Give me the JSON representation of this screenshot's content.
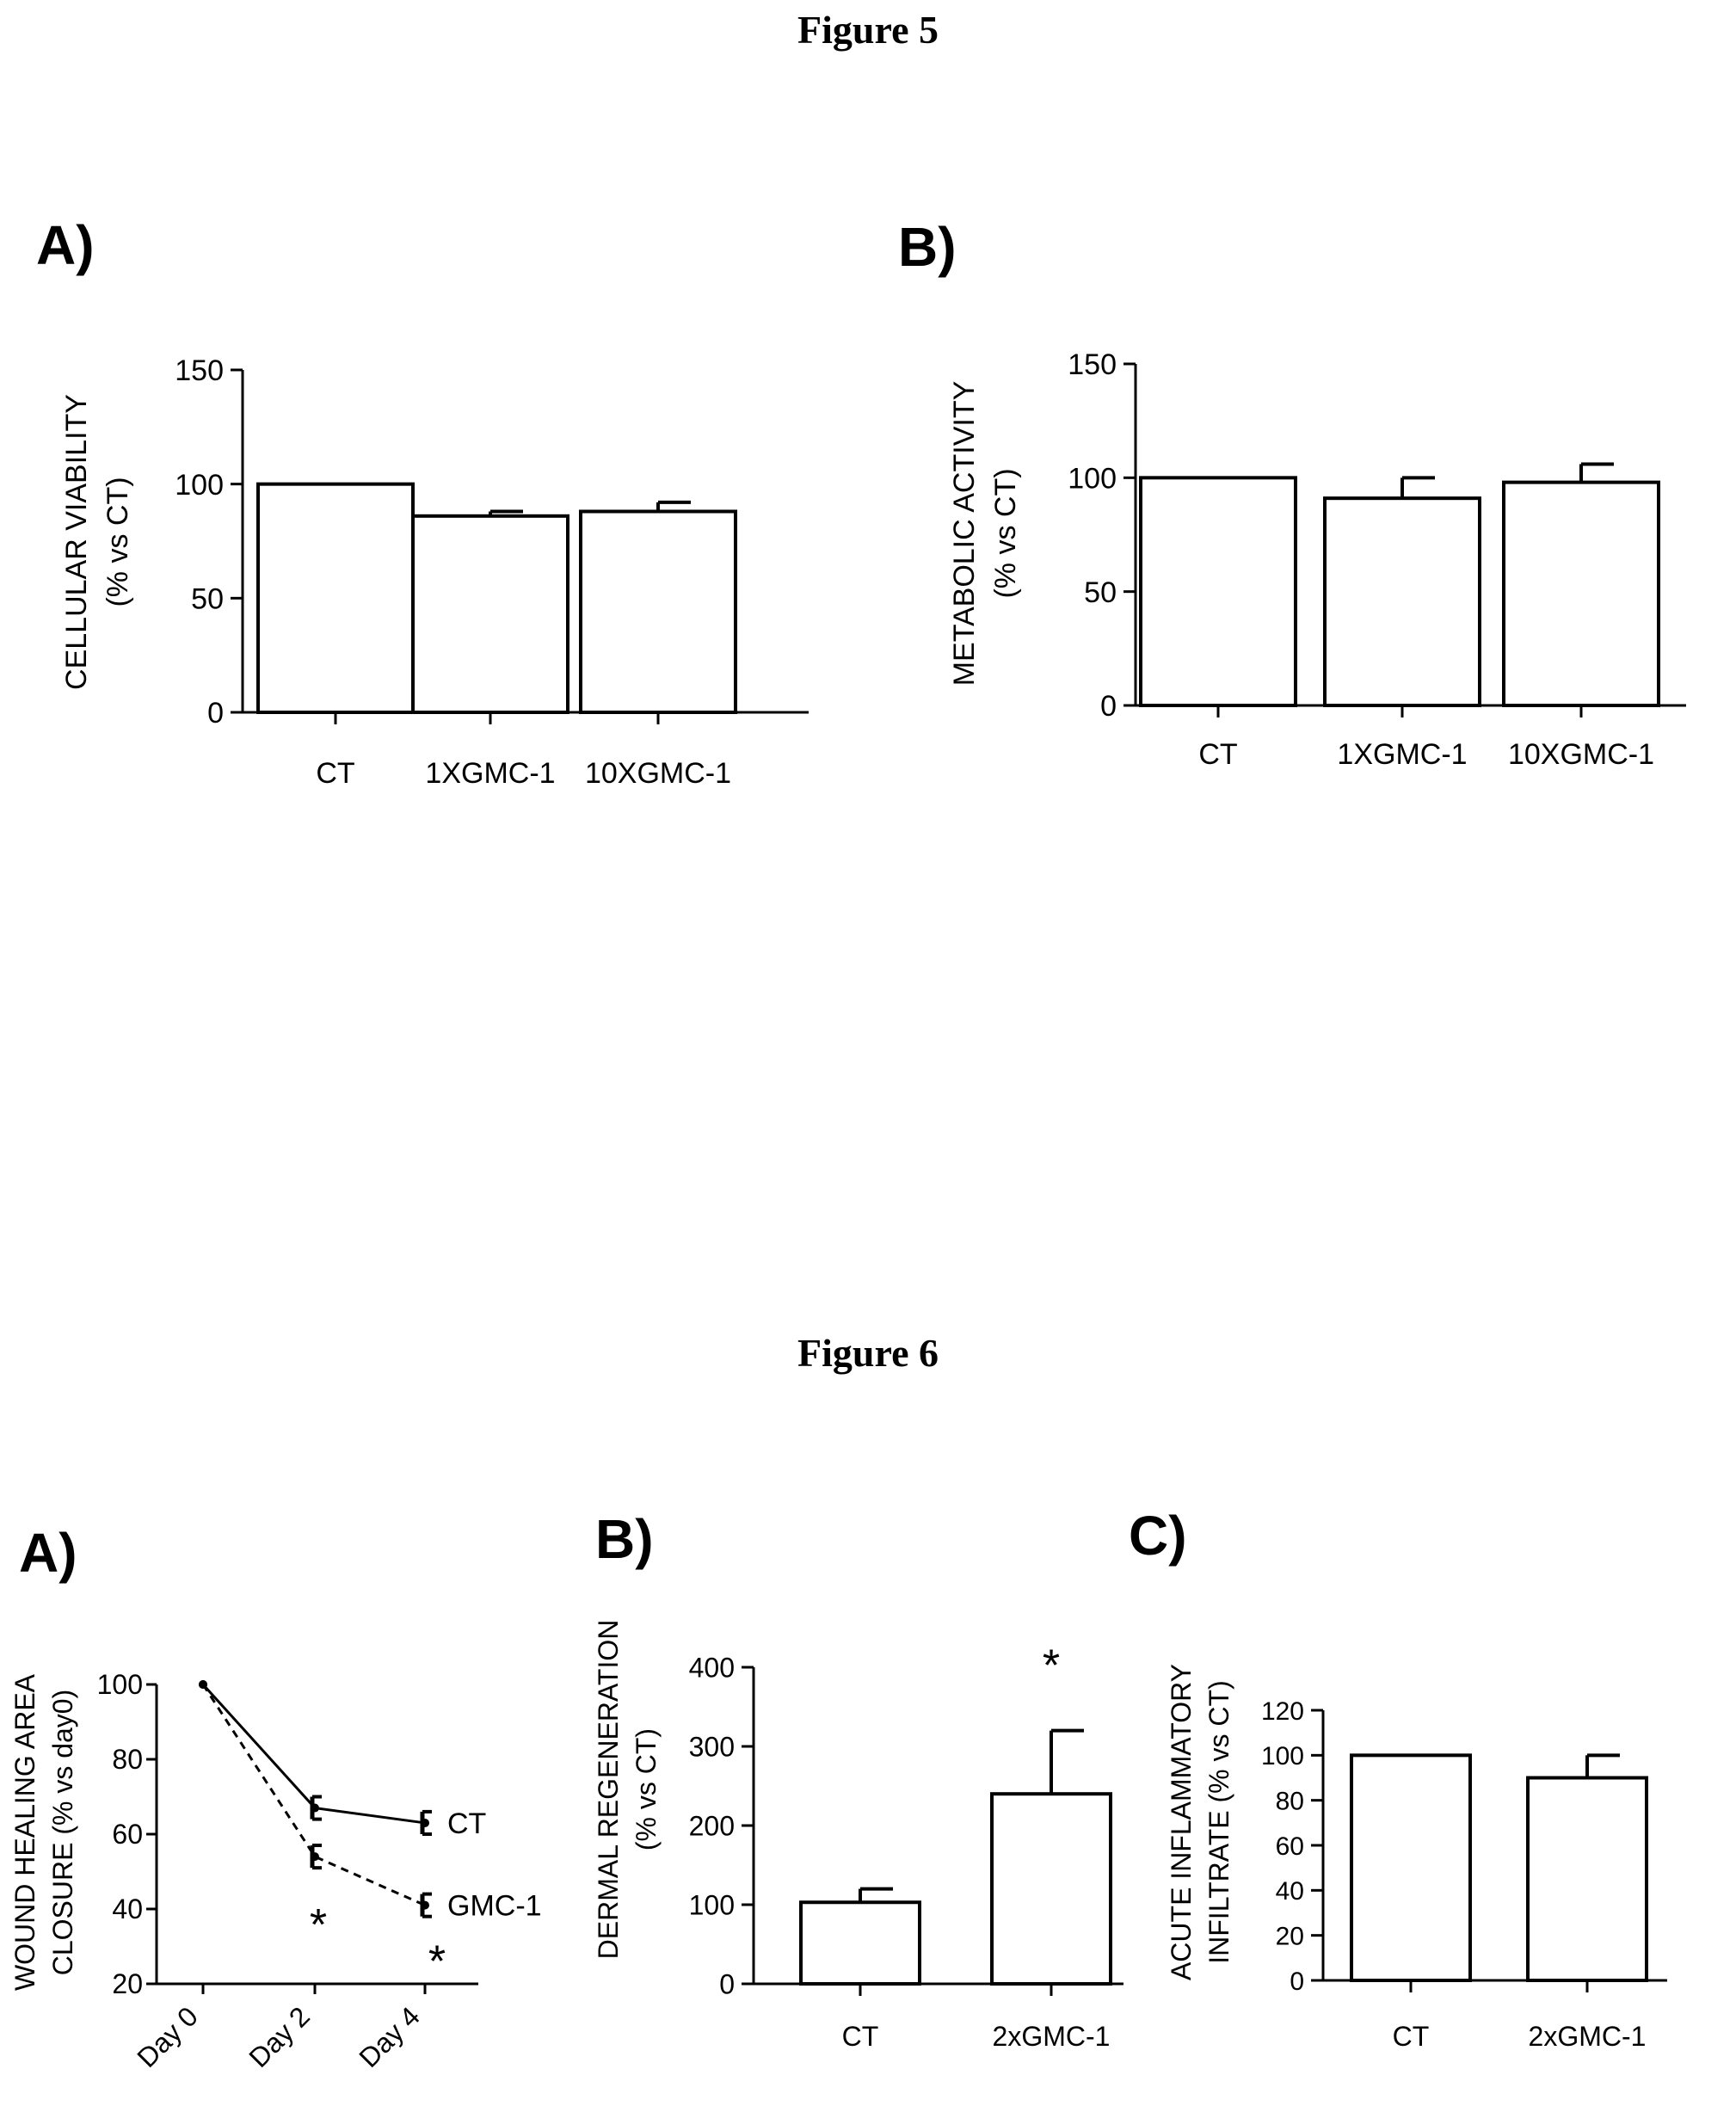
{
  "figures": [
    {
      "title": "Figure 5",
      "panels": [
        "A)",
        "B)"
      ]
    },
    {
      "title": "Figure 6",
      "panels": [
        "A)",
        "B)",
        "C)"
      ]
    }
  ],
  "chart_data": [
    {
      "id": "fig5a",
      "type": "bar",
      "categories": [
        "CT",
        "1XGMC-1",
        "10XGMC-1"
      ],
      "values": [
        100,
        86,
        88
      ],
      "errors": [
        0,
        2,
        4
      ],
      "ylabel": [
        "CELLULAR VIABILITY",
        "(% vs CT)"
      ],
      "ylim": [
        0,
        150
      ],
      "yticks": [
        0,
        50,
        100,
        150
      ],
      "annotations": []
    },
    {
      "id": "fig5b",
      "type": "bar",
      "categories": [
        "CT",
        "1XGMC-1",
        "10XGMC-1"
      ],
      "values": [
        100,
        91,
        98
      ],
      "errors": [
        0,
        9,
        8
      ],
      "ylabel": [
        "METABOLIC ACTIVITY",
        "(% vs CT)"
      ],
      "ylim": [
        0,
        150
      ],
      "yticks": [
        0,
        50,
        100,
        150
      ],
      "annotations": []
    },
    {
      "id": "fig6a",
      "type": "line",
      "x": [
        "Day 0",
        "Day 2",
        "Day 4"
      ],
      "series": [
        {
          "name": "CT",
          "values": [
            100,
            67,
            63
          ],
          "errors": [
            0,
            3,
            3
          ],
          "style": "solid"
        },
        {
          "name": "GMC-1",
          "values": [
            100,
            54,
            41
          ],
          "errors": [
            0,
            3,
            3
          ],
          "style": "dashed"
        }
      ],
      "ylabel": [
        "WOUND HEALING AREA",
        "CLOSURE (% vs day0)"
      ],
      "ylim": [
        20,
        100
      ],
      "yticks": [
        20,
        40,
        60,
        80,
        100
      ],
      "annotations": [
        {
          "text": "*",
          "x": "Day 2"
        },
        {
          "text": "*",
          "x": "Day 4"
        }
      ]
    },
    {
      "id": "fig6b",
      "type": "bar",
      "categories": [
        "CT",
        "2xGMC-1"
      ],
      "values": [
        103,
        240
      ],
      "errors": [
        17,
        80
      ],
      "ylabel": [
        "DERMAL REGENERATION",
        "(% vs CT)"
      ],
      "ylim": [
        0,
        400
      ],
      "yticks": [
        0,
        100,
        200,
        300,
        400
      ],
      "annotations": [
        {
          "text": "*",
          "category": "2xGMC-1"
        }
      ]
    },
    {
      "id": "fig6c",
      "type": "bar",
      "categories": [
        "CT",
        "2xGMC-1"
      ],
      "values": [
        100,
        90
      ],
      "errors": [
        0,
        10
      ],
      "ylabel": [
        "ACUTE INFLAMMATORY",
        "INFILTRATE (% vs CT)"
      ],
      "ylim": [
        0,
        120
      ],
      "yticks": [
        0,
        20,
        40,
        60,
        80,
        100,
        120
      ],
      "annotations": []
    }
  ]
}
